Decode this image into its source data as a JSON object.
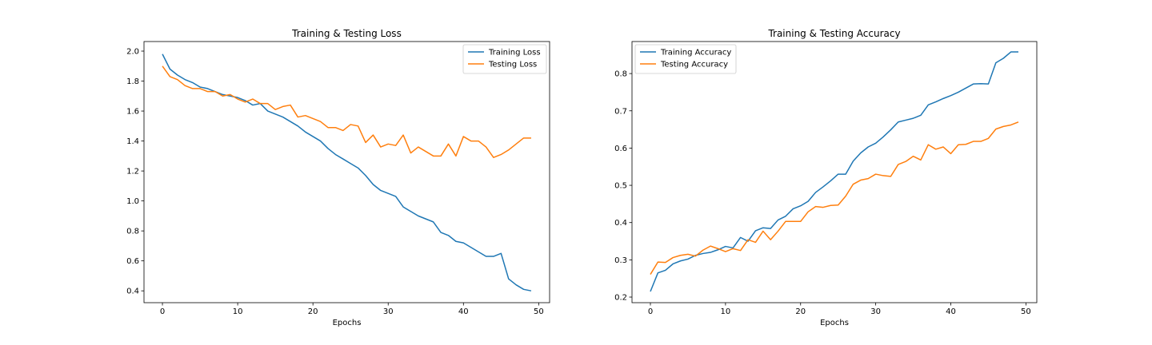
{
  "chart_data": [
    {
      "type": "line",
      "title": "Training & Testing Loss",
      "xlabel": "Epochs",
      "ylabel": "",
      "xlim": [
        -2.45,
        51.45
      ],
      "ylim": [
        0.321,
        2.064
      ],
      "xticks": [
        0,
        10,
        20,
        30,
        40,
        50
      ],
      "yticks": [
        0.4,
        0.6,
        0.8,
        1.0,
        1.2,
        1.4,
        1.6,
        1.8,
        2.0
      ],
      "ytick_labels": [
        "0.4",
        "0.6",
        "0.8",
        "1.0",
        "1.2",
        "1.4",
        "1.6",
        "1.8",
        "2.0"
      ],
      "legend_position": "top-right",
      "grid": false,
      "x": [
        0,
        1,
        2,
        3,
        4,
        5,
        6,
        7,
        8,
        9,
        10,
        11,
        12,
        13,
        14,
        15,
        16,
        17,
        18,
        19,
        20,
        21,
        22,
        23,
        24,
        25,
        26,
        27,
        28,
        29,
        30,
        31,
        32,
        33,
        34,
        35,
        36,
        37,
        38,
        39,
        40,
        41,
        42,
        43,
        44,
        45,
        46,
        47,
        48,
        49
      ],
      "series": [
        {
          "name": "Training Loss",
          "color": "#1f77b4",
          "values": [
            1.98,
            1.88,
            1.84,
            1.81,
            1.79,
            1.76,
            1.75,
            1.73,
            1.71,
            1.7,
            1.69,
            1.67,
            1.64,
            1.65,
            1.6,
            1.58,
            1.56,
            1.53,
            1.5,
            1.46,
            1.43,
            1.4,
            1.35,
            1.31,
            1.28,
            1.25,
            1.22,
            1.17,
            1.11,
            1.07,
            1.05,
            1.03,
            0.96,
            0.93,
            0.9,
            0.88,
            0.86,
            0.79,
            0.77,
            0.73,
            0.72,
            0.69,
            0.66,
            0.63,
            0.63,
            0.65,
            0.48,
            0.44,
            0.41,
            0.4
          ]
        },
        {
          "name": "Testing Loss",
          "color": "#ff7f0e",
          "values": [
            1.9,
            1.83,
            1.81,
            1.77,
            1.75,
            1.75,
            1.73,
            1.73,
            1.7,
            1.71,
            1.68,
            1.66,
            1.68,
            1.65,
            1.65,
            1.61,
            1.63,
            1.64,
            1.56,
            1.57,
            1.55,
            1.53,
            1.49,
            1.49,
            1.47,
            1.51,
            1.5,
            1.39,
            1.44,
            1.36,
            1.38,
            1.37,
            1.44,
            1.32,
            1.36,
            1.33,
            1.3,
            1.3,
            1.38,
            1.3,
            1.43,
            1.4,
            1.4,
            1.36,
            1.29,
            1.31,
            1.34,
            1.38,
            1.42,
            1.42
          ]
        }
      ]
    },
    {
      "type": "line",
      "title": "Training & Testing Accuracy",
      "xlabel": "Epochs",
      "ylabel": "",
      "xlim": [
        -2.45,
        51.45
      ],
      "ylim": [
        0.185,
        0.886
      ],
      "xticks": [
        0,
        10,
        20,
        30,
        40,
        50
      ],
      "yticks": [
        0.2,
        0.3,
        0.4,
        0.5,
        0.6,
        0.7,
        0.8
      ],
      "ytick_labels": [
        "0.2",
        "0.3",
        "0.4",
        "0.5",
        "0.6",
        "0.7",
        "0.8"
      ],
      "legend_position": "top-left",
      "grid": false,
      "x": [
        0,
        1,
        2,
        3,
        4,
        5,
        6,
        7,
        8,
        9,
        10,
        11,
        12,
        13,
        14,
        15,
        16,
        17,
        18,
        19,
        20,
        21,
        22,
        23,
        24,
        25,
        26,
        27,
        28,
        29,
        30,
        31,
        32,
        33,
        34,
        35,
        36,
        37,
        38,
        39,
        40,
        41,
        42,
        43,
        44,
        45,
        46,
        47,
        48,
        49
      ],
      "series": [
        {
          "name": "Training Accuracy",
          "color": "#1f77b4",
          "values": [
            0.215,
            0.265,
            0.272,
            0.289,
            0.297,
            0.302,
            0.312,
            0.317,
            0.32,
            0.327,
            0.336,
            0.332,
            0.36,
            0.35,
            0.378,
            0.386,
            0.384,
            0.407,
            0.417,
            0.437,
            0.445,
            0.457,
            0.481,
            0.496,
            0.512,
            0.53,
            0.53,
            0.565,
            0.587,
            0.603,
            0.613,
            0.63,
            0.649,
            0.67,
            0.675,
            0.68,
            0.688,
            0.716,
            0.724,
            0.733,
            0.741,
            0.75,
            0.761,
            0.772,
            0.773,
            0.772,
            0.829,
            0.841,
            0.858,
            0.858
          ]
        },
        {
          "name": "Testing Accuracy",
          "color": "#ff7f0e",
          "values": [
            0.261,
            0.294,
            0.293,
            0.306,
            0.312,
            0.315,
            0.31,
            0.326,
            0.337,
            0.33,
            0.322,
            0.33,
            0.325,
            0.354,
            0.347,
            0.377,
            0.354,
            0.377,
            0.403,
            0.403,
            0.403,
            0.429,
            0.443,
            0.441,
            0.446,
            0.447,
            0.471,
            0.503,
            0.514,
            0.518,
            0.53,
            0.526,
            0.524,
            0.556,
            0.564,
            0.578,
            0.568,
            0.609,
            0.597,
            0.603,
            0.585,
            0.609,
            0.61,
            0.618,
            0.618,
            0.626,
            0.651,
            0.658,
            0.662,
            0.67
          ]
        }
      ]
    }
  ]
}
